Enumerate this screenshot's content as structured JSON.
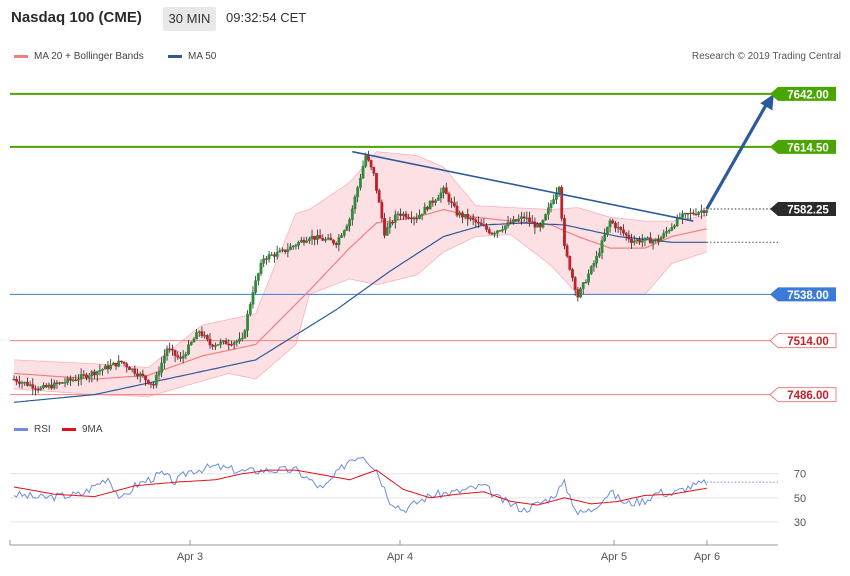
{
  "header": {
    "title": "Nasdaq 100 (CME)",
    "timeframe": "30 MIN",
    "clock": "09:32:54 CET"
  },
  "legend": {
    "ma20_label": "MA 20 + Bollinger Bands",
    "ma50_label": "MA 50",
    "rsi_label": "RSI",
    "rsi_ma_label": "9MA"
  },
  "copyright": "Research © 2019 Trading Central",
  "colors": {
    "ma20": "#f08080",
    "band_fill": "#fde0e4",
    "ma50": "#2d5a9a",
    "up_candle": "#2e8b3a",
    "down_candle": "#c0202a",
    "resistance": "#4aa500",
    "support_blue": "#3b7bd8",
    "support_red": "#f08080",
    "rsi": "#6d8de3",
    "rsi_ma": "#e0101a"
  },
  "chart_data": {
    "type": "candlestick",
    "price_axis_range": [
      7478,
      7658
    ],
    "rsi_axis_range": [
      15,
      98
    ],
    "x_labels": [
      "Apr 3",
      "Apr 4",
      "Apr 5",
      "Apr 6"
    ],
    "rsi_ticks": [
      70,
      50,
      30
    ],
    "levels": [
      {
        "label": "7642.00",
        "value": 7642.0,
        "kind": "resistance"
      },
      {
        "label": "7614.50",
        "value": 7614.5,
        "kind": "resistance"
      },
      {
        "label": "7582.25",
        "value": 7582.25,
        "kind": "last_price"
      },
      {
        "label": "7538.00",
        "value": 7538.0,
        "kind": "support_blue"
      },
      {
        "label": "7514.00",
        "value": 7514.0,
        "kind": "support_red"
      },
      {
        "label": "7486.00",
        "value": 7486.0,
        "kind": "support_red"
      }
    ],
    "close_keypoints": [
      [
        0,
        7494
      ],
      [
        10,
        7489
      ],
      [
        25,
        7495
      ],
      [
        40,
        7503
      ],
      [
        52,
        7491
      ],
      [
        57,
        7510
      ],
      [
        62,
        7504
      ],
      [
        69,
        7519
      ],
      [
        73,
        7512
      ],
      [
        85,
        7514
      ],
      [
        89,
        7540
      ],
      [
        93,
        7557
      ],
      [
        100,
        7560
      ],
      [
        110,
        7568
      ],
      [
        120,
        7565
      ],
      [
        125,
        7577
      ],
      [
        131,
        7610
      ],
      [
        134,
        7600
      ],
      [
        138,
        7570
      ],
      [
        143,
        7580
      ],
      [
        150,
        7578
      ],
      [
        160,
        7592
      ],
      [
        165,
        7580
      ],
      [
        170,
        7577
      ],
      [
        178,
        7570
      ],
      [
        185,
        7575
      ],
      [
        190,
        7578
      ],
      [
        196,
        7572
      ],
      [
        203,
        7595
      ],
      [
        205,
        7562
      ],
      [
        210,
        7537
      ],
      [
        217,
        7557
      ],
      [
        222,
        7576
      ],
      [
        230,
        7566
      ],
      [
        240,
        7566
      ],
      [
        248,
        7578
      ],
      [
        258,
        7582.25
      ]
    ],
    "ma20_keypoints": [
      [
        0,
        7497
      ],
      [
        30,
        7494
      ],
      [
        50,
        7496
      ],
      [
        70,
        7506
      ],
      [
        90,
        7512
      ],
      [
        110,
        7540
      ],
      [
        125,
        7562
      ],
      [
        135,
        7575
      ],
      [
        150,
        7578
      ],
      [
        160,
        7582
      ],
      [
        172,
        7578
      ],
      [
        185,
        7576
      ],
      [
        200,
        7574
      ],
      [
        210,
        7568
      ],
      [
        222,
        7562
      ],
      [
        235,
        7562
      ],
      [
        245,
        7568
      ],
      [
        258,
        7572
      ]
    ],
    "band_upper_keypoints": [
      [
        0,
        7504
      ],
      [
        30,
        7502
      ],
      [
        50,
        7500
      ],
      [
        70,
        7522
      ],
      [
        90,
        7528
      ],
      [
        105,
        7580
      ],
      [
        110,
        7582
      ],
      [
        125,
        7596
      ],
      [
        135,
        7612
      ],
      [
        150,
        7610
      ],
      [
        160,
        7604
      ],
      [
        172,
        7584
      ],
      [
        185,
        7583
      ],
      [
        200,
        7582
      ],
      [
        210,
        7583
      ],
      [
        222,
        7578
      ],
      [
        235,
        7576
      ],
      [
        245,
        7576
      ],
      [
        258,
        7579
      ]
    ],
    "band_lower_keypoints": [
      [
        0,
        7489
      ],
      [
        30,
        7486
      ],
      [
        50,
        7485
      ],
      [
        70,
        7493
      ],
      [
        80,
        7497
      ],
      [
        90,
        7494
      ],
      [
        105,
        7512
      ],
      [
        110,
        7538
      ],
      [
        125,
        7546
      ],
      [
        135,
        7543
      ],
      [
        150,
        7548
      ],
      [
        160,
        7560
      ],
      [
        172,
        7568
      ],
      [
        185,
        7569
      ],
      [
        200,
        7553
      ],
      [
        210,
        7538
      ],
      [
        222,
        7538
      ],
      [
        235,
        7538
      ],
      [
        245,
        7554
      ],
      [
        258,
        7560
      ]
    ],
    "ma50_keypoints": [
      [
        0,
        7482
      ],
      [
        30,
        7486
      ],
      [
        60,
        7495
      ],
      [
        90,
        7504
      ],
      [
        120,
        7530
      ],
      [
        140,
        7550
      ],
      [
        160,
        7568
      ],
      [
        175,
        7574
      ],
      [
        190,
        7575
      ],
      [
        205,
        7574
      ],
      [
        225,
        7568
      ],
      [
        245,
        7565
      ],
      [
        258,
        7565
      ]
    ],
    "trend_line": {
      "from": [
        126,
        7612
      ],
      "to": [
        253,
        7576
      ]
    },
    "forecast_arrow": {
      "from": [
        258,
        7582.25
      ],
      "to": [
        283,
        7642
      ]
    },
    "rsi_keypoints": [
      [
        0,
        53
      ],
      [
        10,
        50
      ],
      [
        25,
        53
      ],
      [
        35,
        67
      ],
      [
        40,
        48
      ],
      [
        45,
        60
      ],
      [
        55,
        70
      ],
      [
        60,
        63
      ],
      [
        65,
        72
      ],
      [
        75,
        76
      ],
      [
        85,
        72
      ],
      [
        95,
        73
      ],
      [
        105,
        73
      ],
      [
        115,
        57
      ],
      [
        125,
        82
      ],
      [
        130,
        86
      ],
      [
        135,
        73
      ],
      [
        140,
        48
      ],
      [
        145,
        40
      ],
      [
        155,
        52
      ],
      [
        165,
        55
      ],
      [
        175,
        60
      ],
      [
        180,
        50
      ],
      [
        190,
        40
      ],
      [
        200,
        50
      ],
      [
        205,
        62
      ],
      [
        210,
        37
      ],
      [
        215,
        40
      ],
      [
        222,
        55
      ],
      [
        228,
        45
      ],
      [
        235,
        48
      ],
      [
        240,
        55
      ],
      [
        245,
        53
      ],
      [
        250,
        58
      ],
      [
        258,
        63
      ]
    ],
    "rsi_ma_keypoints": [
      [
        0,
        59
      ],
      [
        15,
        53
      ],
      [
        30,
        51
      ],
      [
        45,
        60
      ],
      [
        60,
        63
      ],
      [
        75,
        65
      ],
      [
        85,
        70
      ],
      [
        95,
        73
      ],
      [
        105,
        73
      ],
      [
        115,
        69
      ],
      [
        125,
        65
      ],
      [
        135,
        73
      ],
      [
        145,
        57
      ],
      [
        155,
        50
      ],
      [
        165,
        53
      ],
      [
        175,
        55
      ],
      [
        185,
        47
      ],
      [
        195,
        44
      ],
      [
        205,
        50
      ],
      [
        215,
        45
      ],
      [
        225,
        47
      ],
      [
        235,
        52
      ],
      [
        245,
        53
      ],
      [
        258,
        58
      ]
    ]
  }
}
